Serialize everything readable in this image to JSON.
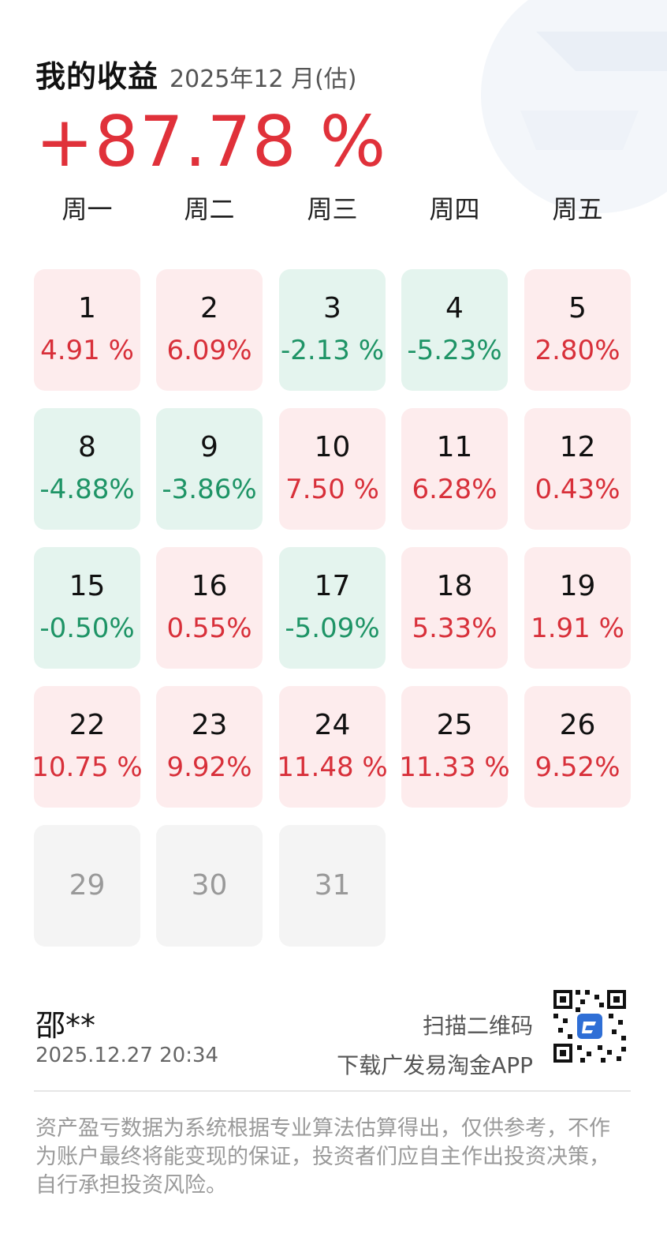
{
  "header": {
    "title": "我的收益",
    "period": "2025年12 月(估)",
    "total_return": "+87.78 %"
  },
  "colors": {
    "gain_text": "#d8303a",
    "loss_text": "#1e9466",
    "gain_bg": "#fdeced",
    "loss_bg": "#e4f4ee",
    "future_bg": "#f4f4f4"
  },
  "weekdays": [
    "周一",
    "周二",
    "周三",
    "周四",
    "周五"
  ],
  "calendar": [
    {
      "day": "1",
      "return": "4.91 %",
      "status": "up"
    },
    {
      "day": "2",
      "return": "6.09%",
      "status": "up"
    },
    {
      "day": "3",
      "return": "-2.13 %",
      "status": "down"
    },
    {
      "day": "4",
      "return": "-5.23%",
      "status": "down"
    },
    {
      "day": "5",
      "return": "2.80%",
      "status": "up"
    },
    {
      "day": "8",
      "return": "-4.88%",
      "status": "down"
    },
    {
      "day": "9",
      "return": "-3.86%",
      "status": "down"
    },
    {
      "day": "10",
      "return": "7.50 %",
      "status": "up"
    },
    {
      "day": "11",
      "return": "6.28%",
      "status": "up"
    },
    {
      "day": "12",
      "return": "0.43%",
      "status": "up"
    },
    {
      "day": "15",
      "return": "-0.50%",
      "status": "down"
    },
    {
      "day": "16",
      "return": "0.55%",
      "status": "up"
    },
    {
      "day": "17",
      "return": "-5.09%",
      "status": "down"
    },
    {
      "day": "18",
      "return": "5.33%",
      "status": "up"
    },
    {
      "day": "19",
      "return": "1.91 %",
      "status": "up"
    },
    {
      "day": "22",
      "return": "10.75 %",
      "status": "up"
    },
    {
      "day": "23",
      "return": "9.92%",
      "status": "up"
    },
    {
      "day": "24",
      "return": "11.48 %",
      "status": "up"
    },
    {
      "day": "25",
      "return": "11.33 %",
      "status": "up"
    },
    {
      "day": "26",
      "return": "9.52%",
      "status": "up"
    },
    {
      "day": "29",
      "return": "",
      "status": "future"
    },
    {
      "day": "30",
      "return": "",
      "status": "future"
    },
    {
      "day": "31",
      "return": "",
      "status": "future"
    }
  ],
  "footer": {
    "user_name": "邵**",
    "timestamp": "2025.12.27  20:34",
    "scan_line1": "扫描二维码",
    "scan_line2": "下载广发易淘金APP",
    "qr_icon": "qr-code-icon",
    "app_icon": "app-logo-icon",
    "disclaimer": "资产盈亏数据为系统根据专业算法估算得出，仅供参考，不作为账户最终将能变现的保证，投资者们应自主作出投资决策，自行承担投资风险。"
  }
}
